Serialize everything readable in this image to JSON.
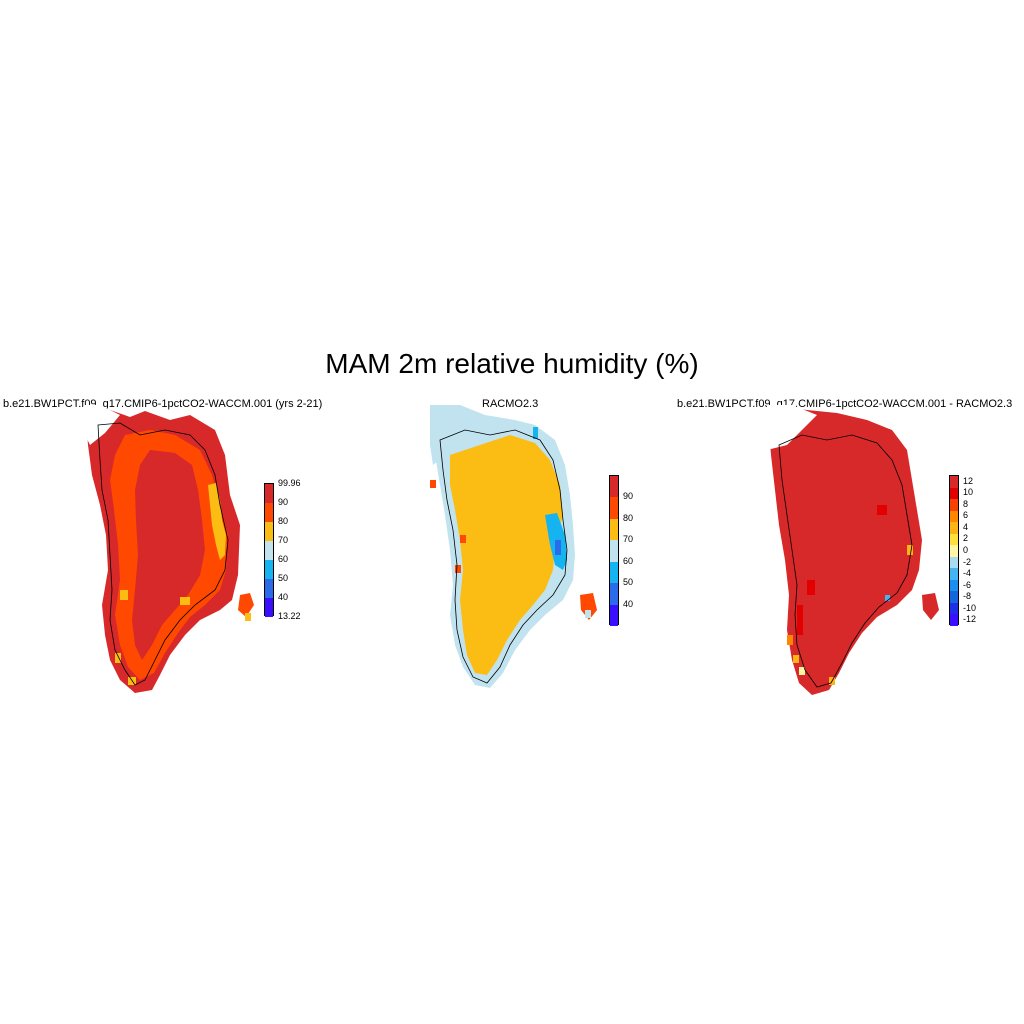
{
  "figure": {
    "title": "MAM 2m relative humidity (%)"
  },
  "panels": [
    {
      "id": "p1",
      "title": "b.e21.BW1PCT.f09_g17.CMIP6-1pctCO2-WACCM.001 (yrs 2-21)",
      "colorbar": {
        "colors": [
          "#3a0fff",
          "#2b6ae8",
          "#15b4f0",
          "#c0e3ef",
          "#fbbc13",
          "#ff4800",
          "#d7282a"
        ],
        "labels": [
          "13.22",
          "40",
          "50",
          "60",
          "70",
          "80",
          "90",
          "99.96"
        ]
      }
    },
    {
      "id": "p2",
      "title": "RACMO2.3",
      "colorbar": {
        "colors": [
          "#3a0fff",
          "#2b6ae8",
          "#15b4f0",
          "#c0e3ef",
          "#fbbc13",
          "#ff4800",
          "#d7282a"
        ],
        "labels": [
          "40",
          "50",
          "60",
          "70",
          "80",
          "90"
        ]
      }
    },
    {
      "id": "p3",
      "title": "b.e21.BW1PCT.f09_g17.CMIP6-1pctCO2-WACCM.001 - RACMO2.3",
      "colorbar": {
        "colors": [
          "#3a0fff",
          "#1e2fe6",
          "#1565dd",
          "#1b8ff0",
          "#44b4f2",
          "#a9dcf2",
          "#fff7a6",
          "#fde13c",
          "#fcb515",
          "#ff8600",
          "#f54200",
          "#e20000",
          "#d7282a"
        ],
        "labels": [
          "-12",
          "-10",
          "-8",
          "-6",
          "-4",
          "-2",
          "0",
          "2",
          "4",
          "6",
          "8",
          "10",
          "12"
        ]
      }
    }
  ]
}
